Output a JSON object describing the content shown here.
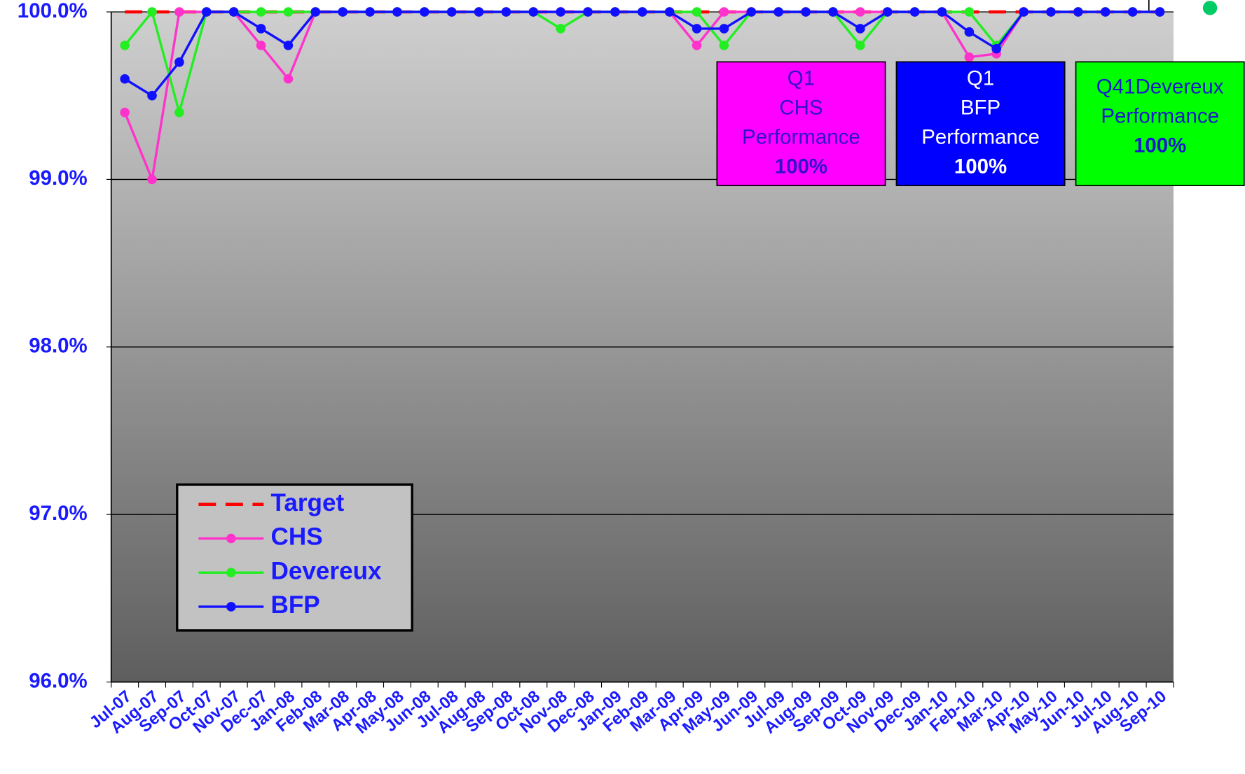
{
  "chart_data": {
    "type": "line",
    "categories": [
      "Jul-07",
      "Aug-07",
      "Sep-07",
      "Oct-07",
      "Nov-07",
      "Dec-07",
      "Jan-08",
      "Feb-08",
      "Mar-08",
      "Apr-08",
      "May-08",
      "Jun-08",
      "Jul-08",
      "Aug-08",
      "Sep-08",
      "Oct-08",
      "Nov-08",
      "Dec-08",
      "Jan-09",
      "Feb-09",
      "Mar-09",
      "Apr-09",
      "May-09",
      "Jun-09",
      "Jul-09",
      "Aug-09",
      "Sep-09",
      "Oct-09",
      "Nov-09",
      "Dec-09",
      "Jan-10",
      "Feb-10",
      "Mar-10",
      "Apr-10",
      "May-10",
      "Jun-10",
      "Jul-10",
      "Aug-10",
      "Sep-10"
    ],
    "series": [
      {
        "name": "Target",
        "color": "#ff0000",
        "dashed": true,
        "markers": false,
        "values": [
          100,
          100,
          100,
          100,
          100,
          100,
          100,
          100,
          100,
          100,
          100,
          100,
          100,
          100,
          100,
          100,
          100,
          100,
          100,
          100,
          100,
          100,
          100,
          100,
          100,
          100,
          100,
          100,
          100,
          100,
          100,
          100,
          100,
          100,
          100,
          100,
          100,
          100,
          100
        ]
      },
      {
        "name": "CHS",
        "color": "#ff33cc",
        "dashed": false,
        "markers": true,
        "values": [
          99.4,
          99.0,
          100,
          100,
          100,
          99.8,
          99.6,
          100,
          100,
          100,
          100,
          100,
          100,
          100,
          100,
          100,
          100,
          100,
          100,
          100,
          100,
          99.8,
          100,
          100,
          100,
          100,
          100,
          100,
          100,
          100,
          100,
          99.73,
          99.75,
          100,
          100,
          100,
          100,
          100,
          100
        ]
      },
      {
        "name": "Devereux",
        "color": "#22ee22",
        "dashed": false,
        "markers": true,
        "values": [
          99.8,
          100,
          99.4,
          100,
          100,
          100,
          100,
          100,
          100,
          100,
          100,
          100,
          100,
          100,
          100,
          100,
          99.9,
          100,
          100,
          100,
          100,
          100,
          99.8,
          100,
          100,
          100,
          100,
          99.8,
          100,
          100,
          100,
          100,
          99.8,
          100,
          100,
          100,
          100,
          100,
          100
        ]
      },
      {
        "name": "BFP",
        "color": "#1010ff",
        "dashed": false,
        "markers": true,
        "values": [
          99.6,
          99.5,
          99.7,
          100,
          100,
          99.9,
          99.8,
          100,
          100,
          100,
          100,
          100,
          100,
          100,
          100,
          100,
          100,
          100,
          100,
          100,
          100,
          99.9,
          99.9,
          100,
          100,
          100,
          100,
          99.9,
          100,
          100,
          100,
          99.88,
          99.78,
          100,
          100,
          100,
          100,
          100,
          100
        ]
      }
    ],
    "ylim": [
      96,
      100
    ],
    "yticks": [
      {
        "value": 96,
        "label": "96.0%"
      },
      {
        "value": 97,
        "label": "97.0%"
      },
      {
        "value": 98,
        "label": "98.0%"
      },
      {
        "value": 99,
        "label": "99.0%"
      },
      {
        "value": 100,
        "label": "100.0%"
      }
    ],
    "grid": true,
    "legend": "lower-left",
    "annotations": [
      {
        "lines": [
          "Q1",
          "CHS",
          "Performance",
          "100%"
        ],
        "background": "#ff00ff",
        "color": "#3311cc"
      },
      {
        "lines": [
          "Q1",
          "BFP",
          "Performance",
          "100%"
        ],
        "background": "#0000ff",
        "color": "#ffffff"
      },
      {
        "lines": [
          "Q41Devereux",
          "Performance",
          "100%"
        ],
        "background": "#00ff00",
        "color": "#1a1acc"
      }
    ]
  }
}
